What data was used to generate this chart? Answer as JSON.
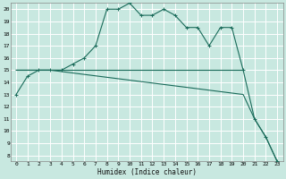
{
  "xlabel": "Humidex (Indice chaleur)",
  "bg_color": "#c8e8e0",
  "grid_color": "#ffffff",
  "line_color": "#1a6b5a",
  "xlim": [
    -0.5,
    23.5
  ],
  "ylim": [
    7.5,
    20.5
  ],
  "xticks": [
    0,
    1,
    2,
    3,
    4,
    5,
    6,
    7,
    8,
    9,
    10,
    11,
    12,
    13,
    14,
    15,
    16,
    17,
    18,
    19,
    20,
    21,
    22,
    23
  ],
  "yticks": [
    8,
    9,
    10,
    11,
    12,
    13,
    14,
    15,
    16,
    17,
    18,
    19,
    20
  ],
  "curve1_x": [
    0,
    1,
    2,
    3,
    4,
    5,
    6,
    7,
    8,
    9,
    10,
    11,
    12,
    13,
    14,
    15,
    16,
    17,
    18,
    19,
    20,
    21,
    22,
    23
  ],
  "curve1_y": [
    13,
    14.5,
    15,
    15,
    15,
    15.5,
    16,
    17,
    20,
    20,
    20.5,
    19.5,
    19.5,
    20,
    19.5,
    18.5,
    18.5,
    17,
    18.5,
    18.5,
    15,
    11,
    9.5,
    7.5
  ],
  "curve2_x": [
    0,
    3,
    20
  ],
  "curve2_y": [
    15,
    15,
    15
  ],
  "curve3_x": [
    0,
    3,
    20,
    21,
    22,
    23
  ],
  "curve3_y": [
    15,
    15,
    13,
    11,
    9.5,
    7.5
  ]
}
